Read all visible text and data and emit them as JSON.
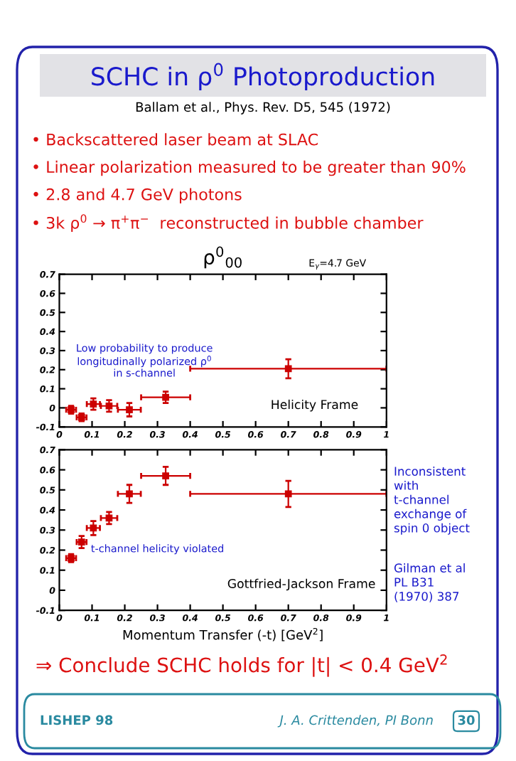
{
  "chart_data": [
    {
      "type": "other",
      "title": "SCHC in ρ$^{0}$ Photoproduction",
      "subtitle": "Ballam et al., Phys. Rev. D5, 545 (1972)",
      "annotations": [
        "• Backscattered laser beam at SLAC",
        "• Linear polarization measured to be greater than 90%",
        "• 2.8 and 4.7 GeV photons",
        "• 3k ρ$^{0}$ → π$^{+}$π$^{−}$  reconstructed in bubble chamber",
        "⇒ Conclude SCHC holds for |t| < 0.4 GeV$^{2}$",
        "LISHEP 98",
        "J. A. Crittenden, PI Bonn",
        "30"
      ]
    },
    {
      "type": "scatter",
      "title": "ρ$^{0}$$_{00}$",
      "subtitle": "E$_{γ}$=4.7 GeV",
      "x": [
        0.036,
        0.068,
        0.104,
        0.152,
        0.214,
        0.325,
        0.7
      ],
      "series": [
        {
          "color": "#cc0000",
          "values": [
            -0.01,
            -0.05,
            0.02,
            0.01,
            -0.01,
            0.055,
            0.205
          ],
          "errors": [
            0.02,
            0.02,
            0.03,
            0.03,
            0.035,
            0.03,
            0.05
          ],
          "xerrors": [
            0.015,
            0.015,
            0.02,
            0.025,
            0.035,
            0.075,
            0.3
          ]
        }
      ],
      "xlim": [
        0,
        1
      ],
      "ylim": [
        -0.1,
        0.7
      ],
      "xticks": [
        0,
        0.1,
        0.2,
        0.3,
        0.4,
        0.5,
        0.6,
        0.7,
        0.8,
        0.9,
        1
      ],
      "yticks": [
        -0.1,
        0,
        0.1,
        0.2,
        0.3,
        0.4,
        0.5,
        0.6,
        0.7
      ],
      "marker": "square",
      "grid": false,
      "legend": false,
      "annotations": [
        "Low probability to produce\nlongitudinally polarized ρ$^{0}$\nin s-channel",
        "Helicity Frame"
      ]
    },
    {
      "type": "scatter",
      "xlabel": "Momentum Transfer (-t) [GeV$^{2}$]",
      "x": [
        0.036,
        0.068,
        0.104,
        0.152,
        0.214,
        0.325,
        0.7
      ],
      "series": [
        {
          "color": "#cc0000",
          "values": [
            0.16,
            0.24,
            0.31,
            0.36,
            0.48,
            0.57,
            0.48
          ],
          "errors": [
            0.02,
            0.03,
            0.035,
            0.03,
            0.045,
            0.045,
            0.065
          ],
          "xerrors": [
            0.015,
            0.015,
            0.02,
            0.025,
            0.035,
            0.075,
            0.3
          ]
        }
      ],
      "xlim": [
        0,
        1
      ],
      "ylim": [
        -0.1,
        0.7
      ],
      "xticks": [
        0,
        0.1,
        0.2,
        0.3,
        0.4,
        0.5,
        0.6,
        0.7,
        0.8,
        0.9,
        1
      ],
      "yticks": [
        -0.1,
        0,
        0.1,
        0.2,
        0.3,
        0.4,
        0.5,
        0.6,
        0.7
      ],
      "marker": "square",
      "grid": false,
      "legend": false,
      "annotations": [
        "t-channel helicity violated",
        "Gottfried-Jackson Frame",
        "Inconsistent\nwith\nt-channel\nexchange of\nspin 0 object",
        "Gilman et al\nPL B31\n(1970) 387"
      ]
    }
  ]
}
